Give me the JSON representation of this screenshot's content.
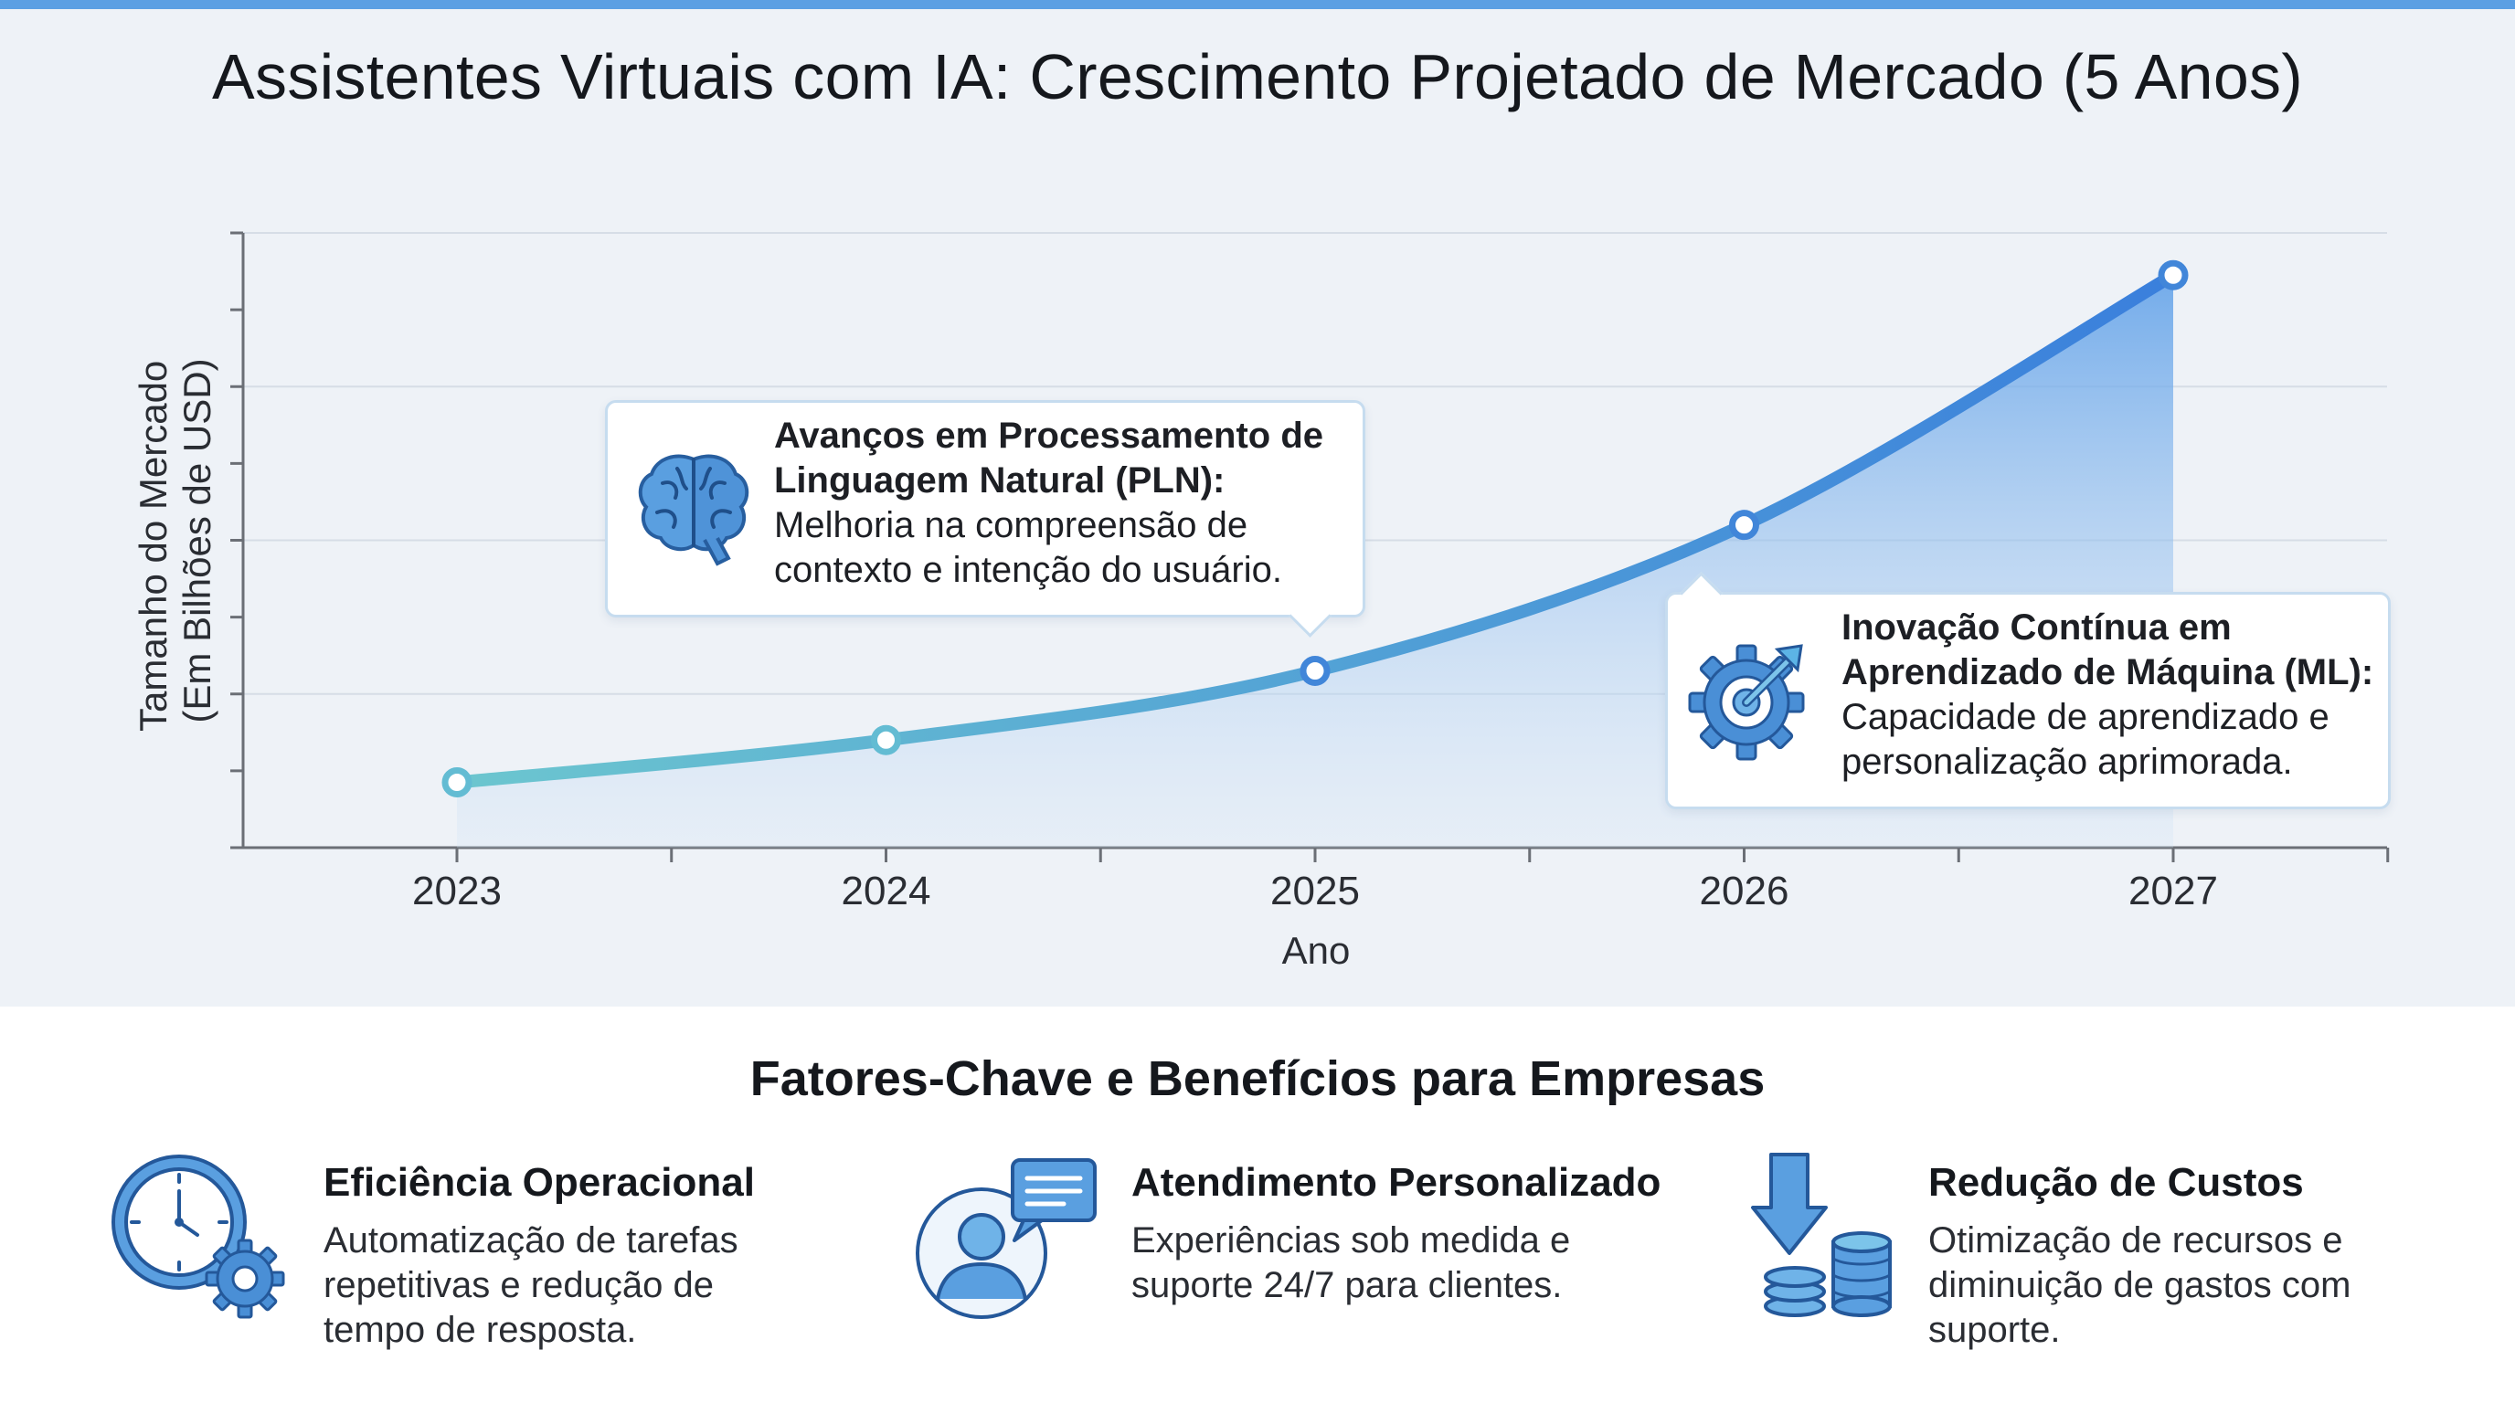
{
  "title": "Assistentes Virtuais com IA: Crescimento Projetado de Mercado (5 Anos)",
  "chart_data": {
    "type": "area",
    "title": "Assistentes Virtuais com IA: Crescimento Projetado de Mercado (5 Anos)",
    "xlabel": "Ano",
    "ylabel_lines": [
      "Tamanho do Mercado",
      "(Em Bilhões de USD)"
    ],
    "categories": [
      "2023",
      "2024",
      "2025",
      "2026",
      "2027"
    ],
    "values": [
      0.85,
      1.4,
      2.3,
      4.2,
      7.45
    ],
    "ylim": [
      0,
      8
    ],
    "y_tick_labels_shown": false,
    "grid": "horizontal",
    "colors": {
      "line_start": "#6cc6cf",
      "line_end": "#3a7fdc",
      "area": "#5d9fe8"
    }
  },
  "callouts": [
    {
      "icon": "brain-icon",
      "title_lines": [
        "Avanços em Processamento de",
        "Linguagem Natural (PLN):"
      ],
      "body_lines": [
        "Melhoria na compreensão de",
        "contexto e intenção do usuário."
      ]
    },
    {
      "icon": "gear-arrow-icon",
      "title_lines": [
        "Inovação Contínua em",
        "Aprendizado de Máquina (ML):"
      ],
      "body_lines": [
        "Capacidade de aprendizado e",
        "personalização aprimorada."
      ]
    }
  ],
  "benefits_title": "Fatores-Chave e Benefícios para Empresas",
  "benefits": [
    {
      "icon": "clock-gear-icon",
      "title": "Eficiência Operacional",
      "desc_lines": [
        "Automatização de tarefas",
        "repetitivas e redução de",
        "tempo de resposta."
      ]
    },
    {
      "icon": "user-chat-icon",
      "title": "Atendimento Personalizado",
      "desc_lines": [
        "Experiências sob medida e",
        "suporte 24/7 para clientes."
      ]
    },
    {
      "icon": "arrow-coins-icon",
      "title": "Redução de Custos",
      "desc_lines": [
        "Otimização de recursos e",
        "diminuição de gastos com",
        "suporte."
      ]
    }
  ]
}
